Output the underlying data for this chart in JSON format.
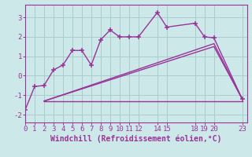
{
  "xlabel": "Windchill (Refroidissement éolien,°C)",
  "bg_color": "#cde8e8",
  "grid_color": "#aacccc",
  "line_color": "#993399",
  "line1_x": [
    0,
    1,
    2,
    3,
    4,
    5,
    6,
    7,
    8,
    9,
    10,
    11,
    12,
    14,
    15,
    18,
    19,
    20,
    23
  ],
  "line1_y": [
    -1.75,
    -0.55,
    -0.5,
    0.3,
    0.55,
    1.3,
    1.3,
    0.55,
    1.85,
    2.35,
    2.0,
    2.0,
    2.0,
    3.25,
    2.5,
    2.7,
    2.0,
    1.95,
    -1.2
  ],
  "line2_x": [
    2,
    12,
    23
  ],
  "line2_y": [
    -1.3,
    -1.3,
    -1.3
  ],
  "line3_x": [
    2,
    20,
    23
  ],
  "line3_y": [
    -1.3,
    1.5,
    -1.2
  ],
  "line4_x": [
    2,
    20,
    23
  ],
  "line4_y": [
    -1.3,
    1.65,
    -1.2
  ],
  "xlim": [
    0,
    23.5
  ],
  "ylim": [
    -2.4,
    3.65
  ],
  "xticks": [
    0,
    1,
    2,
    3,
    4,
    5,
    6,
    7,
    8,
    9,
    10,
    11,
    12,
    14,
    15,
    18,
    19,
    20,
    23
  ],
  "yticks": [
    -2,
    -1,
    0,
    1,
    2,
    3
  ],
  "tick_fontsize": 6.5,
  "label_fontsize": 7.0
}
